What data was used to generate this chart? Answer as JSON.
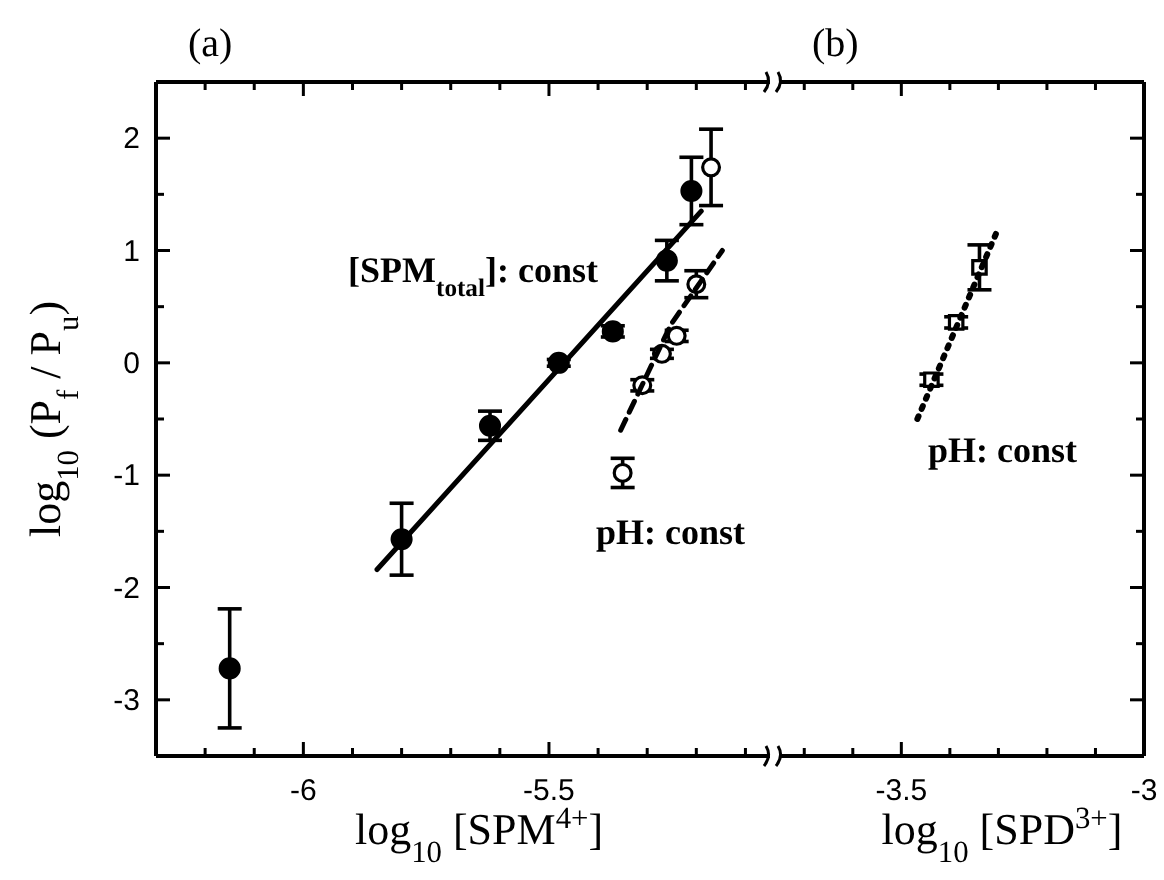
{
  "chart_data": [
    {
      "type": "scatter",
      "title": "(a)",
      "xlabel": "log$_{10}$ [SPM$^{4+}$]",
      "ylabel": "log$_{10}$ (P$_{f}$ / P$_{u}$)",
      "xlim": [
        -6.3,
        -5.05
      ],
      "ylim": [
        -3.5,
        2.5
      ],
      "xticks": [
        {
          "value": -6.2,
          "label": null
        },
        {
          "value": -6.1,
          "label": null
        },
        -6,
        {
          "value": -5.9,
          "label": null
        },
        {
          "value": -5.8,
          "label": null
        },
        {
          "value": -5.7,
          "label": null
        },
        {
          "value": -5.6,
          "label": null
        },
        -5.5,
        {
          "value": -5.4,
          "label": null
        },
        {
          "value": -5.3,
          "label": null
        },
        {
          "value": -5.2,
          "label": null
        },
        {
          "value": -5.1,
          "label": null
        }
      ],
      "yticks": [
        -3,
        {
          "value": -2.5,
          "label": null
        },
        -2,
        {
          "value": -1.5,
          "label": null
        },
        -1,
        {
          "value": -0.5,
          "label": null
        },
        0,
        {
          "value": 0.5,
          "label": null
        },
        1,
        {
          "value": 1.5,
          "label": null
        },
        2
      ],
      "grid": false,
      "series": [
        {
          "type": "scatter",
          "marker": "circle",
          "color": "#000000",
          "x": [
            -6.15,
            -5.8,
            -5.62,
            -5.48,
            -5.37,
            -5.26,
            -5.21
          ],
          "values": [
            -2.72,
            -1.57,
            -0.56,
            0.0,
            0.28,
            0.91,
            1.53
          ],
          "errors": [
            0.53,
            0.32,
            0.13,
            0.03,
            0.05,
            0.18,
            0.3
          ]
        },
        {
          "type": "scatter",
          "marker": "circle",
          "color": "#000000",
          "x": [
            -5.35,
            -5.31,
            -5.27,
            -5.24,
            -5.2,
            -5.17
          ],
          "values": [
            -0.98,
            -0.2,
            0.08,
            0.24,
            0.7,
            1.74
          ],
          "errors": [
            0.13,
            0.05,
            0.04,
            0.05,
            0.12,
            0.34
          ]
        },
        {
          "type": "line",
          "color": "#000000",
          "line_style": "solid",
          "x": [
            -5.85,
            -5.19
          ],
          "values": [
            -1.84,
            1.35
          ]
        },
        {
          "type": "line",
          "color": "#000000",
          "line_style": "dashed",
          "x": [
            -5.354,
            -5.252,
            -5.147
          ],
          "values": [
            -0.6,
            0.34,
            1.0
          ]
        }
      ],
      "annotations": [
        "[SPM$_{total}$]: const",
        "pH: const"
      ]
    },
    {
      "type": "scatter",
      "title": "(b)",
      "xlabel": "log$_{10}$ [SPD$^{3+}$]",
      "xlim": [
        -3.75,
        -3
      ],
      "ylim": [
        -3.5,
        2.5
      ],
      "tick_labels": "x",
      "xticks": [
        {
          "value": -3.7,
          "label": null
        },
        {
          "value": -3.6,
          "label": null
        },
        -3.5,
        {
          "value": -3.4,
          "label": null
        },
        {
          "value": -3.3,
          "label": null
        },
        {
          "value": -3.2,
          "label": null
        },
        {
          "value": -3.1,
          "label": null
        },
        -3
      ],
      "yticks": [
        -3,
        {
          "value": -2.5,
          "label": null
        },
        -2,
        {
          "value": -1.5,
          "label": null
        },
        -1,
        {
          "value": -0.5,
          "label": null
        },
        0,
        {
          "value": 0.5,
          "label": null
        },
        1,
        {
          "value": 1.5,
          "label": null
        },
        2
      ],
      "grid": false,
      "series": [
        {
          "type": "scatter",
          "marker": "square",
          "color": "#000000",
          "x": [
            -3.438,
            -3.387,
            -3.339
          ],
          "values": [
            -0.15,
            0.36,
            0.85
          ],
          "errors": [
            0.05,
            0.05,
            0.2
          ]
        },
        {
          "type": "line",
          "color": "#000000",
          "line_style": "dotted",
          "x": [
            -3.467,
            -3.3
          ],
          "values": [
            -0.5,
            1.2
          ]
        }
      ],
      "annotations": [
        "pH: const"
      ]
    }
  ]
}
